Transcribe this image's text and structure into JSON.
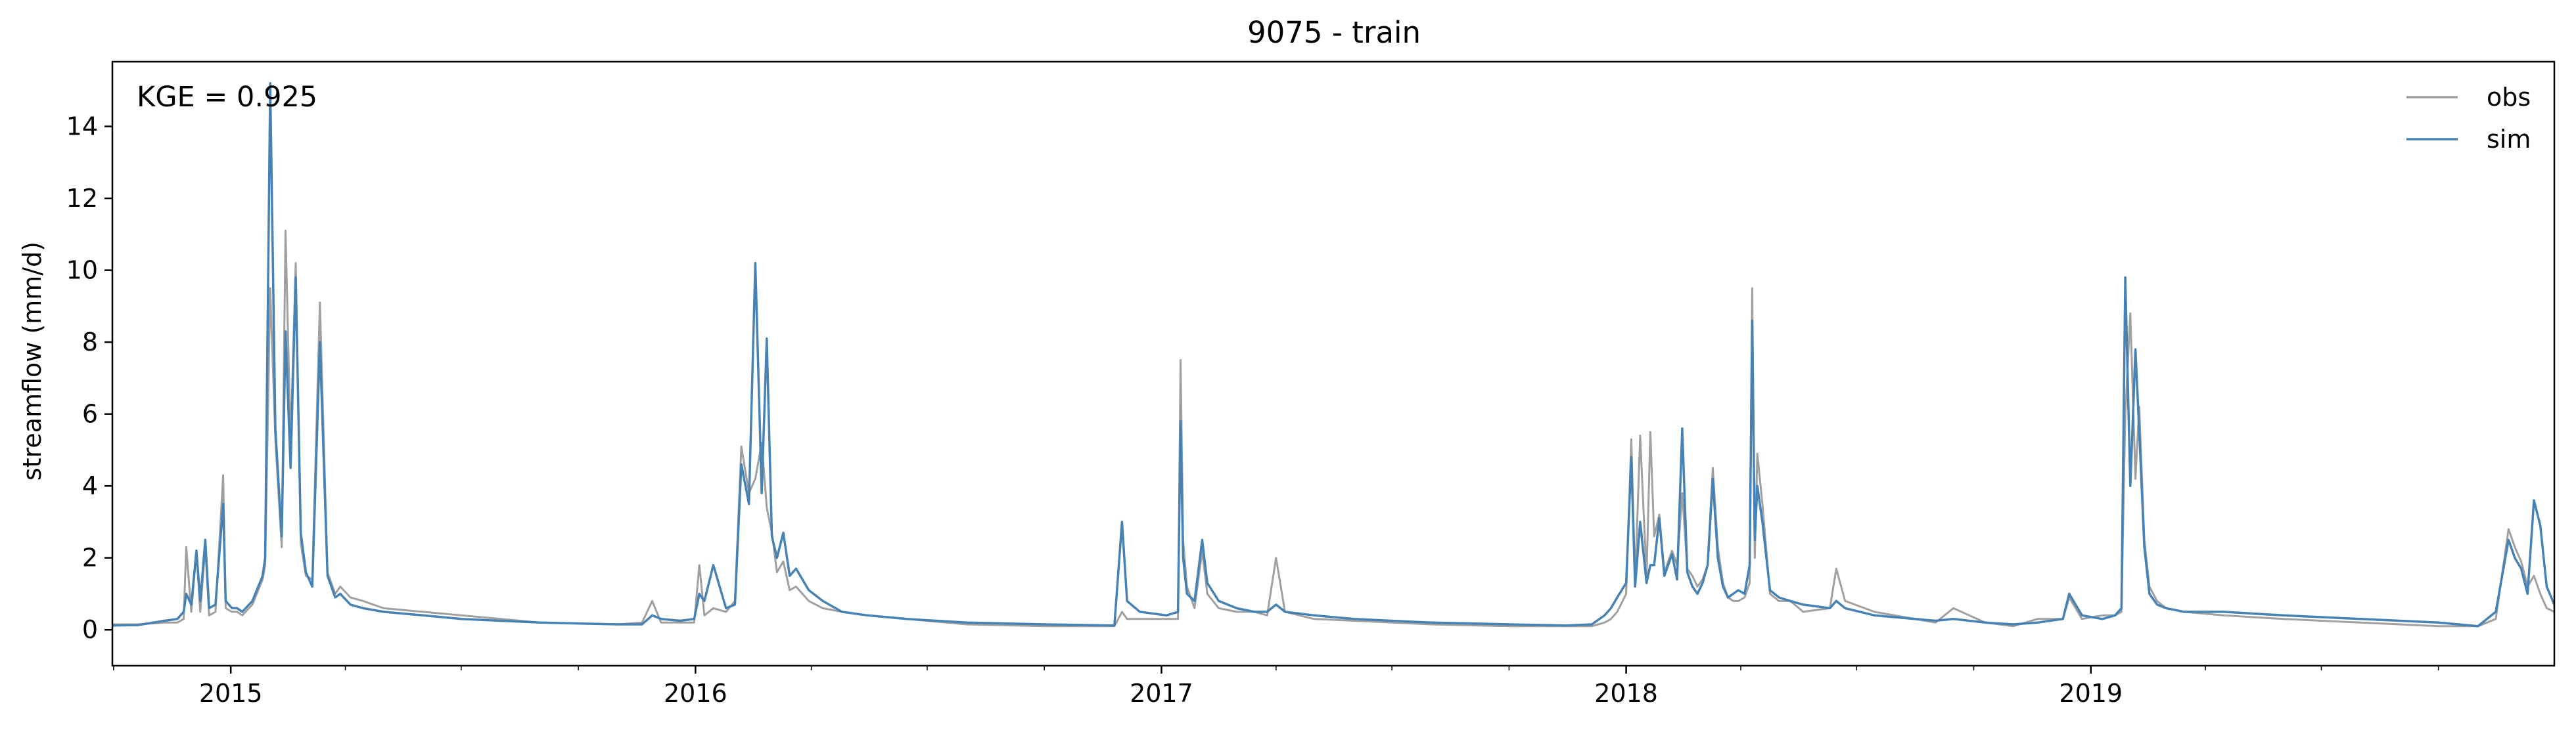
{
  "chart_data": {
    "type": "line",
    "title": "9075 - train",
    "xlabel": "",
    "ylabel": "streamflow (mm/d)",
    "annotation": "KGE = 0.925",
    "x_range": [
      "2014-09-30",
      "2019-12-31"
    ],
    "ylim": [
      -1,
      15.8
    ],
    "yticks": [
      0,
      2,
      4,
      6,
      8,
      10,
      12,
      14
    ],
    "xticks": [
      "2015-01-01",
      "2016-01-01",
      "2017-01-01",
      "2018-01-01",
      "2019-01-01"
    ],
    "xtick_labels": [
      "2015",
      "2016",
      "2017",
      "2018",
      "2019"
    ],
    "grid": false,
    "legend": "top-right",
    "series": [
      {
        "name": "obs",
        "color": "#a0a0a0",
        "x": [
          "2014-09-30",
          "2014-10-20",
          "2014-11-10",
          "2014-11-20",
          "2014-11-25",
          "2014-11-27",
          "2014-12-01",
          "2014-12-05",
          "2014-12-08",
          "2014-12-12",
          "2014-12-15",
          "2014-12-20",
          "2014-12-26",
          "2014-12-28",
          "2015-01-02",
          "2015-01-06",
          "2015-01-10",
          "2015-01-18",
          "2015-01-26",
          "2015-01-28",
          "2015-02-01",
          "2015-02-05",
          "2015-02-10",
          "2015-02-13",
          "2015-02-17",
          "2015-02-21",
          "2015-02-25",
          "2015-03-01",
          "2015-03-06",
          "2015-03-12",
          "2015-03-18",
          "2015-03-24",
          "2015-03-28",
          "2015-04-05",
          "2015-04-15",
          "2015-05-01",
          "2015-06-01",
          "2015-07-01",
          "2015-09-01",
          "2015-11-01",
          "2015-11-20",
          "2015-11-28",
          "2015-12-05",
          "2015-12-20",
          "2015-12-31",
          "2016-01-04",
          "2016-01-08",
          "2016-01-15",
          "2016-01-25",
          "2016-02-01",
          "2016-02-06",
          "2016-02-12",
          "2016-02-17",
          "2016-02-22",
          "2016-02-26",
          "2016-03-01",
          "2016-03-05",
          "2016-03-10",
          "2016-03-15",
          "2016-03-20",
          "2016-03-30",
          "2016-04-10",
          "2016-04-25",
          "2016-05-15",
          "2016-06-15",
          "2016-08-01",
          "2016-10-01",
          "2016-11-25",
          "2016-12-01",
          "2016-12-05",
          "2016-12-15",
          "2017-01-05",
          "2017-01-14",
          "2017-01-16",
          "2017-01-18",
          "2017-01-21",
          "2017-01-27",
          "2017-02-02",
          "2017-02-06",
          "2017-02-15",
          "2017-03-01",
          "2017-03-15",
          "2017-03-25",
          "2017-04-01",
          "2017-04-08",
          "2017-05-01",
          "2017-06-01",
          "2017-08-01",
          "2017-10-01",
          "2017-11-15",
          "2017-12-05",
          "2017-12-15",
          "2017-12-20",
          "2017-12-25",
          "2018-01-01",
          "2018-01-05",
          "2018-01-08",
          "2018-01-12",
          "2018-01-17",
          "2018-01-20",
          "2018-01-23",
          "2018-01-27",
          "2018-01-31",
          "2018-02-06",
          "2018-02-10",
          "2018-02-14",
          "2018-02-18",
          "2018-02-22",
          "2018-02-26",
          "2018-03-02",
          "2018-03-06",
          "2018-03-10",
          "2018-03-14",
          "2018-03-18",
          "2018-03-22",
          "2018-03-26",
          "2018-03-30",
          "2018-04-04",
          "2018-04-08",
          "2018-04-10",
          "2018-04-12",
          "2018-04-14",
          "2018-04-18",
          "2018-04-24",
          "2018-05-01",
          "2018-05-10",
          "2018-05-20",
          "2018-06-10",
          "2018-06-15",
          "2018-06-22",
          "2018-07-15",
          "2018-09-01",
          "2018-09-15",
          "2018-10-10",
          "2018-11-01",
          "2018-11-20",
          "2018-12-10",
          "2018-12-15",
          "2018-12-25",
          "2019-01-10",
          "2019-01-20",
          "2019-01-25",
          "2019-01-28",
          "2019-02-01",
          "2019-02-05",
          "2019-02-08",
          "2019-02-12",
          "2019-02-16",
          "2019-02-22",
          "2019-03-01",
          "2019-03-15",
          "2019-04-15",
          "2019-06-01",
          "2019-08-01",
          "2019-10-01",
          "2019-11-01",
          "2019-11-15",
          "2019-11-25",
          "2019-11-30",
          "2019-12-05",
          "2019-12-10",
          "2019-12-15",
          "2019-12-20",
          "2019-12-25",
          "2019-12-31"
        ],
        "y": [
          0.15,
          0.15,
          0.2,
          0.2,
          0.3,
          2.3,
          0.5,
          2.2,
          0.5,
          2.3,
          0.4,
          0.5,
          4.3,
          0.6,
          0.5,
          0.5,
          0.4,
          0.7,
          1.4,
          1.8,
          9.5,
          5.3,
          2.3,
          11.1,
          5.2,
          10.2,
          2.4,
          1.5,
          1.4,
          9.1,
          1.6,
          1.0,
          1.2,
          0.9,
          0.8,
          0.6,
          0.5,
          0.4,
          0.2,
          0.15,
          0.2,
          0.8,
          0.2,
          0.2,
          0.2,
          1.8,
          0.4,
          0.6,
          0.5,
          0.8,
          5.1,
          3.8,
          4.2,
          5.2,
          3.4,
          2.7,
          1.6,
          1.9,
          1.1,
          1.2,
          0.8,
          0.6,
          0.5,
          0.4,
          0.3,
          0.15,
          0.1,
          0.1,
          0.5,
          0.3,
          0.3,
          0.3,
          0.3,
          7.5,
          2.5,
          1.2,
          0.6,
          2.2,
          1.0,
          0.6,
          0.5,
          0.5,
          0.4,
          2.0,
          0.5,
          0.3,
          0.25,
          0.15,
          0.1,
          0.1,
          0.1,
          0.2,
          0.3,
          0.5,
          1.0,
          5.3,
          1.3,
          5.4,
          1.5,
          5.5,
          2.6,
          3.2,
          1.6,
          2.2,
          1.8,
          3.8,
          1.7,
          1.5,
          1.2,
          1.4,
          1.8,
          4.5,
          2.3,
          1.3,
          0.9,
          0.8,
          0.8,
          0.9,
          1.3,
          9.5,
          2.0,
          4.9,
          3.5,
          1.0,
          0.8,
          0.8,
          0.5,
          0.6,
          1.7,
          0.8,
          0.5,
          0.2,
          0.6,
          0.2,
          0.1,
          0.3,
          0.3,
          0.9,
          0.3,
          0.4,
          0.4,
          0.5,
          6.0,
          8.8,
          4.2,
          6.2,
          2.5,
          1.2,
          0.8,
          0.6,
          0.5,
          0.4,
          0.3,
          0.2,
          0.1,
          0.1,
          0.3,
          2.8,
          2.3,
          1.9,
          1.2,
          1.5,
          1.0,
          0.6,
          0.5
        ]
      },
      {
        "name": "sim",
        "color": "#4682b4",
        "x": [
          "2014-09-30",
          "2014-10-20",
          "2014-11-10",
          "2014-11-20",
          "2014-11-25",
          "2014-11-27",
          "2014-12-01",
          "2014-12-05",
          "2014-12-08",
          "2014-12-12",
          "2014-12-15",
          "2014-12-20",
          "2014-12-26",
          "2014-12-28",
          "2015-01-02",
          "2015-01-06",
          "2015-01-10",
          "2015-01-18",
          "2015-01-26",
          "2015-01-28",
          "2015-02-01",
          "2015-02-05",
          "2015-02-10",
          "2015-02-13",
          "2015-02-17",
          "2015-02-21",
          "2015-02-25",
          "2015-03-01",
          "2015-03-06",
          "2015-03-12",
          "2015-03-18",
          "2015-03-24",
          "2015-03-28",
          "2015-04-05",
          "2015-04-15",
          "2015-05-01",
          "2015-06-01",
          "2015-07-01",
          "2015-09-01",
          "2015-11-01",
          "2015-11-20",
          "2015-11-28",
          "2015-12-05",
          "2015-12-20",
          "2015-12-31",
          "2016-01-04",
          "2016-01-08",
          "2016-01-15",
          "2016-01-25",
          "2016-02-01",
          "2016-02-06",
          "2016-02-12",
          "2016-02-17",
          "2016-02-22",
          "2016-02-26",
          "2016-03-01",
          "2016-03-05",
          "2016-03-10",
          "2016-03-15",
          "2016-03-20",
          "2016-03-30",
          "2016-04-10",
          "2016-04-25",
          "2016-05-15",
          "2016-06-15",
          "2016-08-01",
          "2016-10-01",
          "2016-11-25",
          "2016-12-01",
          "2016-12-05",
          "2016-12-15",
          "2017-01-05",
          "2017-01-14",
          "2017-01-16",
          "2017-01-18",
          "2017-01-21",
          "2017-01-27",
          "2017-02-02",
          "2017-02-06",
          "2017-02-15",
          "2017-03-01",
          "2017-03-15",
          "2017-03-25",
          "2017-04-01",
          "2017-04-08",
          "2017-05-01",
          "2017-06-01",
          "2017-08-01",
          "2017-10-01",
          "2017-11-15",
          "2017-12-05",
          "2017-12-15",
          "2017-12-20",
          "2017-12-25",
          "2018-01-01",
          "2018-01-05",
          "2018-01-08",
          "2018-01-12",
          "2018-01-17",
          "2018-01-20",
          "2018-01-23",
          "2018-01-27",
          "2018-01-31",
          "2018-02-06",
          "2018-02-10",
          "2018-02-14",
          "2018-02-18",
          "2018-02-22",
          "2018-02-26",
          "2018-03-02",
          "2018-03-06",
          "2018-03-10",
          "2018-03-14",
          "2018-03-18",
          "2018-03-22",
          "2018-03-26",
          "2018-03-30",
          "2018-04-04",
          "2018-04-08",
          "2018-04-10",
          "2018-04-12",
          "2018-04-14",
          "2018-04-18",
          "2018-04-24",
          "2018-05-01",
          "2018-05-10",
          "2018-05-20",
          "2018-06-10",
          "2018-06-15",
          "2018-06-22",
          "2018-07-15",
          "2018-09-01",
          "2018-09-15",
          "2018-10-10",
          "2018-11-01",
          "2018-11-20",
          "2018-12-10",
          "2018-12-15",
          "2018-12-25",
          "2019-01-10",
          "2019-01-20",
          "2019-01-25",
          "2019-01-28",
          "2019-02-01",
          "2019-02-05",
          "2019-02-08",
          "2019-02-12",
          "2019-02-16",
          "2019-02-22",
          "2019-03-01",
          "2019-03-15",
          "2019-04-15",
          "2019-06-01",
          "2019-08-01",
          "2019-10-01",
          "2019-11-01",
          "2019-11-15",
          "2019-11-25",
          "2019-11-30",
          "2019-12-05",
          "2019-12-10",
          "2019-12-15",
          "2019-12-20",
          "2019-12-25",
          "2019-12-31"
        ],
        "y": [
          0.12,
          0.13,
          0.25,
          0.3,
          0.5,
          1.0,
          0.7,
          2.2,
          0.8,
          2.5,
          0.6,
          0.7,
          3.5,
          0.8,
          0.6,
          0.6,
          0.5,
          0.8,
          1.5,
          2.0,
          15.2,
          5.6,
          2.6,
          8.3,
          4.5,
          9.8,
          2.7,
          1.6,
          1.2,
          8.0,
          1.5,
          0.9,
          1.0,
          0.7,
          0.6,
          0.5,
          0.4,
          0.3,
          0.2,
          0.15,
          0.15,
          0.4,
          0.3,
          0.25,
          0.3,
          1.0,
          0.8,
          1.8,
          0.6,
          0.7,
          4.6,
          3.5,
          10.2,
          3.8,
          8.1,
          2.6,
          2.0,
          2.7,
          1.5,
          1.7,
          1.1,
          0.8,
          0.5,
          0.4,
          0.3,
          0.2,
          0.15,
          0.12,
          3.0,
          0.8,
          0.5,
          0.4,
          0.5,
          5.8,
          2.0,
          1.0,
          0.8,
          2.5,
          1.3,
          0.8,
          0.6,
          0.5,
          0.5,
          0.7,
          0.5,
          0.4,
          0.3,
          0.2,
          0.15,
          0.12,
          0.15,
          0.4,
          0.6,
          0.9,
          1.3,
          4.8,
          1.2,
          3.0,
          1.3,
          1.8,
          1.8,
          3.1,
          1.5,
          2.1,
          1.4,
          5.6,
          1.6,
          1.2,
          1.0,
          1.3,
          1.8,
          4.2,
          2.0,
          1.2,
          0.9,
          1.0,
          1.1,
          1.0,
          1.8,
          8.6,
          2.5,
          4.0,
          3.0,
          1.1,
          0.9,
          0.8,
          0.7,
          0.6,
          0.8,
          0.6,
          0.4,
          0.25,
          0.3,
          0.2,
          0.15,
          0.2,
          0.3,
          1.0,
          0.4,
          0.3,
          0.4,
          0.6,
          9.8,
          4.0,
          7.8,
          5.5,
          2.3,
          1.0,
          0.7,
          0.6,
          0.5,
          0.5,
          0.4,
          0.3,
          0.2,
          0.1,
          0.5,
          2.5,
          2.0,
          1.7,
          1.0,
          3.6,
          2.9,
          1.2,
          0.7
        ]
      }
    ]
  }
}
